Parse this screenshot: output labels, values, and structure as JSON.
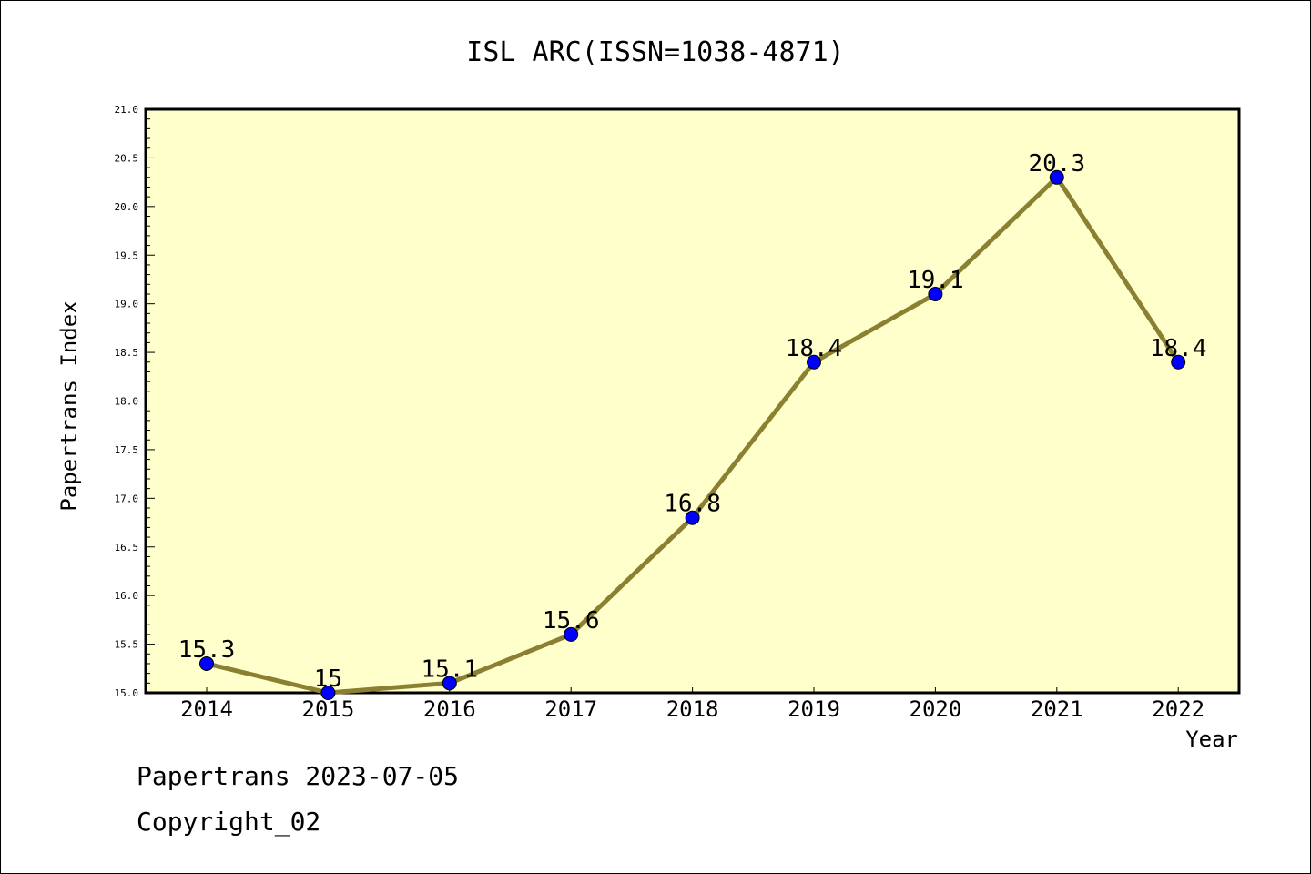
{
  "chart_data": {
    "type": "line",
    "title": "ISL ARC(ISSN=1038-4871)",
    "xlabel": "Year",
    "ylabel": "Papertrans Index",
    "x": [
      "2014",
      "2015",
      "2016",
      "2017",
      "2018",
      "2019",
      "2020",
      "2021",
      "2022"
    ],
    "values": [
      15.3,
      15,
      15.1,
      15.6,
      16.8,
      18.4,
      19.1,
      20.3,
      18.4
    ],
    "data_labels": [
      "15.3",
      "15",
      "15.1",
      "15.6",
      "16.8",
      "18.4",
      "19.1",
      "20.3",
      "18.4"
    ],
    "ylim": [
      15.0,
      21.0
    ],
    "yticks": [
      "15.0",
      "15.5",
      "16.0",
      "16.5",
      "17.0",
      "17.5",
      "18.0",
      "18.5",
      "19.0",
      "19.5",
      "20.0",
      "20.5",
      "21.0"
    ],
    "grid": false,
    "legend": "none",
    "colors": {
      "line": "#8b8032",
      "marker": "#0000ff",
      "plot_background": "#ffffcc"
    }
  },
  "footer": {
    "line1": "Papertrans 2023-07-05",
    "line2": "Copyright_02"
  }
}
